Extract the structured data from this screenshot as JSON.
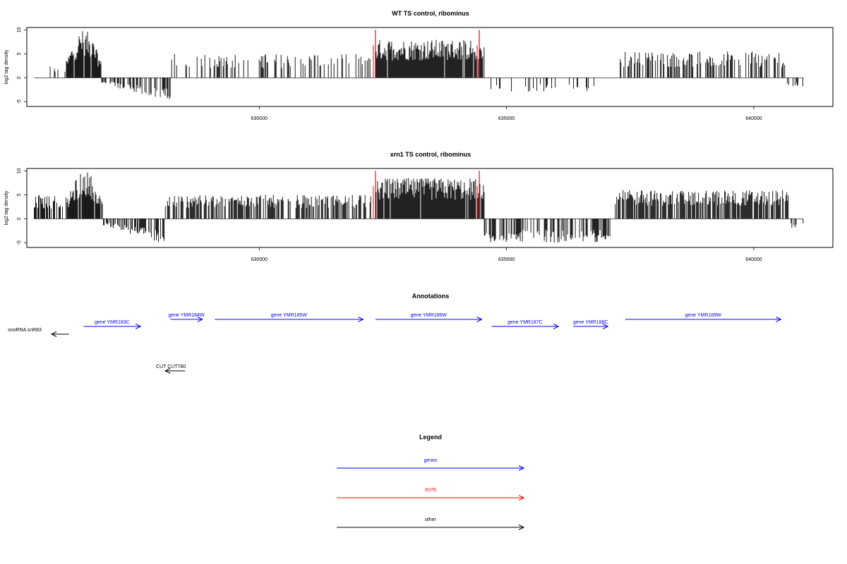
{
  "chart_data": [
    {
      "type": "bar",
      "title": "WT TS control, ribominus",
      "ylabel": "log2 tag density",
      "xlabel": "",
      "xlim": [
        625300,
        641600
      ],
      "ylim": [
        -6,
        10.5
      ],
      "x_ticks": [
        {
          "value": 630000,
          "label": "630000"
        },
        {
          "value": 635000,
          "label": "635000"
        },
        {
          "value": 640000,
          "label": "640000"
        }
      ],
      "y_ticks": [
        {
          "value": -5,
          "label": "-5"
        },
        {
          "value": 0,
          "label": "0"
        },
        {
          "value": 5,
          "label": "5"
        },
        {
          "value": 10,
          "label": "10"
        }
      ],
      "colors": {
        "bars": "#000000",
        "highlight": "#ff0000"
      },
      "segments": [
        {
          "x_start": 625450,
          "x_end": 625460,
          "kind": "sparse",
          "sign": -1,
          "max": 1.2,
          "density": 0.2
        },
        {
          "x_start": 625700,
          "x_end": 626100,
          "kind": "sparse",
          "sign": 1,
          "max": 2.5,
          "density": 0.25
        },
        {
          "x_start": 626100,
          "x_end": 626800,
          "kind": "dense",
          "sign": 1,
          "max": 10,
          "profile": "peak",
          "density": 0.9
        },
        {
          "x_start": 626800,
          "x_end": 628200,
          "kind": "dense",
          "sign": -1,
          "max": 5,
          "profile": "ramp",
          "density": 0.5
        },
        {
          "x_start": 628200,
          "x_end": 632300,
          "kind": "sparse",
          "sign": 1,
          "max": 5,
          "density": 0.3
        },
        {
          "x_start": 632350,
          "x_end": 634550,
          "kind": "dense",
          "sign": 1,
          "max": 8,
          "profile": "flat",
          "density": 0.95
        },
        {
          "x_start": 634600,
          "x_end": 636800,
          "kind": "sparse",
          "sign": -1,
          "max": 3,
          "density": 0.2
        },
        {
          "x_start": 637300,
          "x_end": 640650,
          "kind": "sparse",
          "sign": 1,
          "max": 5.5,
          "density": 0.45
        },
        {
          "x_start": 640650,
          "x_end": 641000,
          "kind": "sparse",
          "sign": -1,
          "max": 2,
          "density": 0.3
        }
      ],
      "red_lines": [
        {
          "x": 632350,
          "y_top": 10
        },
        {
          "x": 634450,
          "y_top": 10
        }
      ]
    },
    {
      "type": "bar",
      "title": "xrn1 TS control, ribominus",
      "ylabel": "log2 tag density",
      "xlabel": "",
      "xlim": [
        625300,
        641600
      ],
      "ylim": [
        -6,
        10.5
      ],
      "x_ticks": [
        {
          "value": 630000,
          "label": "630000"
        },
        {
          "value": 635000,
          "label": "635000"
        },
        {
          "value": 640000,
          "label": "640000"
        }
      ],
      "y_ticks": [
        {
          "value": -5,
          "label": "-5"
        },
        {
          "value": 0,
          "label": "0"
        },
        {
          "value": 5,
          "label": "5"
        },
        {
          "value": 10,
          "label": "10"
        }
      ],
      "colors": {
        "bars": "#000000",
        "highlight": "#ff0000"
      },
      "segments": [
        {
          "x_start": 625450,
          "x_end": 626100,
          "kind": "sparse",
          "sign": 1,
          "max": 5,
          "density": 0.45
        },
        {
          "x_start": 626100,
          "x_end": 626850,
          "kind": "dense",
          "sign": 1,
          "max": 10,
          "profile": "peak",
          "density": 0.9
        },
        {
          "x_start": 626850,
          "x_end": 628100,
          "kind": "dense",
          "sign": -1,
          "max": 5.5,
          "profile": "ramp",
          "density": 0.6
        },
        {
          "x_start": 628100,
          "x_end": 632300,
          "kind": "dense",
          "sign": 1,
          "max": 5,
          "profile": "flat",
          "density": 0.6
        },
        {
          "x_start": 632350,
          "x_end": 634550,
          "kind": "dense",
          "sign": 1,
          "max": 8.5,
          "profile": "flat",
          "density": 0.95
        },
        {
          "x_start": 634550,
          "x_end": 637100,
          "kind": "dense",
          "sign": -1,
          "max": 5,
          "profile": "flat",
          "density": 0.55
        },
        {
          "x_start": 637200,
          "x_end": 640700,
          "kind": "dense",
          "sign": 1,
          "max": 6,
          "profile": "flat",
          "density": 0.75
        },
        {
          "x_start": 640700,
          "x_end": 641000,
          "kind": "sparse",
          "sign": -1,
          "max": 2,
          "density": 0.3
        }
      ],
      "red_lines": [
        {
          "x": 632350,
          "y_top": 10
        },
        {
          "x": 634450,
          "y_top": 10
        }
      ]
    }
  ],
  "annotations": {
    "title": "Annotations",
    "colors": {
      "gene": "#0000ff",
      "xut": "#ff0000",
      "other": "#000000"
    },
    "features": [
      {
        "label": "snoRNA snR83",
        "category": "other",
        "x_start": 626150,
        "x_end": 625800,
        "row": 2
      },
      {
        "label": "gene YMR183C",
        "category": "gene",
        "x_start": 626450,
        "x_end": 627600,
        "row": 1
      },
      {
        "label": "gene YMR184W",
        "category": "gene",
        "x_start": 628200,
        "x_end": 628850,
        "row": 0
      },
      {
        "label": "gene YMR185W",
        "category": "gene",
        "x_start": 629100,
        "x_end": 632100,
        "row": 0
      },
      {
        "label": "gene YMR186W",
        "category": "gene",
        "x_start": 632350,
        "x_end": 634500,
        "row": 0
      },
      {
        "label": "gene YMR187C",
        "category": "gene",
        "x_start": 634700,
        "x_end": 636050,
        "row": 1
      },
      {
        "label": "gene YMR188C",
        "category": "gene",
        "x_start": 636350,
        "x_end": 637050,
        "row": 1
      },
      {
        "label": "gene YMR189W",
        "category": "gene",
        "x_start": 637400,
        "x_end": 640550,
        "row": 0
      },
      {
        "label": "CUT CUT780",
        "category": "other",
        "x_start": 628500,
        "x_end": 628100,
        "row": 3
      }
    ]
  },
  "legend": {
    "title": "Legend",
    "entries": [
      {
        "label": "genes",
        "color": "#0000ff"
      },
      {
        "label": "XUTs",
        "color": "#ff0000"
      },
      {
        "label": "other",
        "color": "#000000"
      }
    ]
  }
}
